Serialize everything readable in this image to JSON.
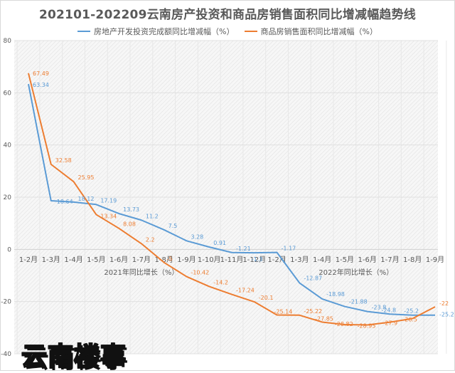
{
  "title": "202101-202209云南房产投资和商品房销售面积同比增减幅趋势线",
  "legend": [
    {
      "label": "房地产开发投资完成额同比增减幅（%）",
      "color": "#5b9bd5"
    },
    {
      "label": "商品房销售面积同比增减幅（%）",
      "color": "#ed7d31"
    }
  ],
  "watermark": "云南楼事",
  "chart_data": {
    "type": "line",
    "title": "202101-202209云南房产投资和商品房销售面积同比增减幅趋势线",
    "xlabel": "",
    "ylabel": "",
    "ylim": [
      -40,
      80
    ],
    "yticks": [
      -40,
      -20,
      0,
      20,
      40,
      60,
      80
    ],
    "grid": true,
    "legend_position": "top",
    "categories": [
      "1-2月",
      "1-3月",
      "1-4月",
      "1-5月",
      "1-6月",
      "1-7月",
      "1-8月",
      "1-9月",
      "1-10月",
      "1-11月",
      "1-12月",
      "1-2月",
      "1-3月",
      "1-4月",
      "1-5月",
      "1-6月",
      "1-7月",
      "1-8月",
      "1-9月"
    ],
    "group_labels": [
      {
        "label": "2021年同比增长（%）",
        "span": [
          0,
          10
        ]
      },
      {
        "label": "2022年同比增长（%）",
        "span": [
          11,
          18
        ]
      }
    ],
    "series": [
      {
        "name": "房地产开发投资完成额同比增减幅（%）",
        "color": "#5b9bd5",
        "values": [
          63.34,
          18.64,
          18.12,
          17.19,
          13.73,
          11.2,
          7.5,
          3.28,
          0.91,
          -1.21,
          -1.3,
          -1.17,
          -12.87,
          -18.98,
          -21.88,
          -23.8,
          -24.8,
          -25.2,
          -25.2
        ],
        "labels": [
          "63.34",
          "18.64",
          "18.12",
          "17.19",
          "13.73",
          "11.2",
          "7.5",
          "3.28",
          "0.91",
          "-1.21",
          "-1.3",
          "-1.17",
          "-12.87",
          "-18.98",
          "-21.88",
          "-23.8",
          "-24.8",
          "-25.2",
          "-25.2"
        ]
      },
      {
        "name": "商品房销售面积同比增减幅（%）",
        "color": "#ed7d31",
        "values": [
          67.49,
          32.58,
          25.95,
          13.34,
          8.08,
          2.2,
          -5,
          -10.42,
          -14.2,
          -17.24,
          -20.1,
          -25.14,
          -25.22,
          -27.85,
          -28.82,
          -28.95,
          -27.9,
          -26.5,
          -22
        ],
        "labels": [
          "67.49",
          "32.58",
          "25.95",
          "13.34",
          "8.08",
          "2.2",
          "-5",
          "-10.42",
          "-14.2",
          "-17.24",
          "-20.1",
          "-25.14",
          "-25.22",
          "-27.85",
          "-28.82",
          "-28.95",
          "-27.9",
          "-26.5",
          "-22"
        ]
      }
    ]
  }
}
